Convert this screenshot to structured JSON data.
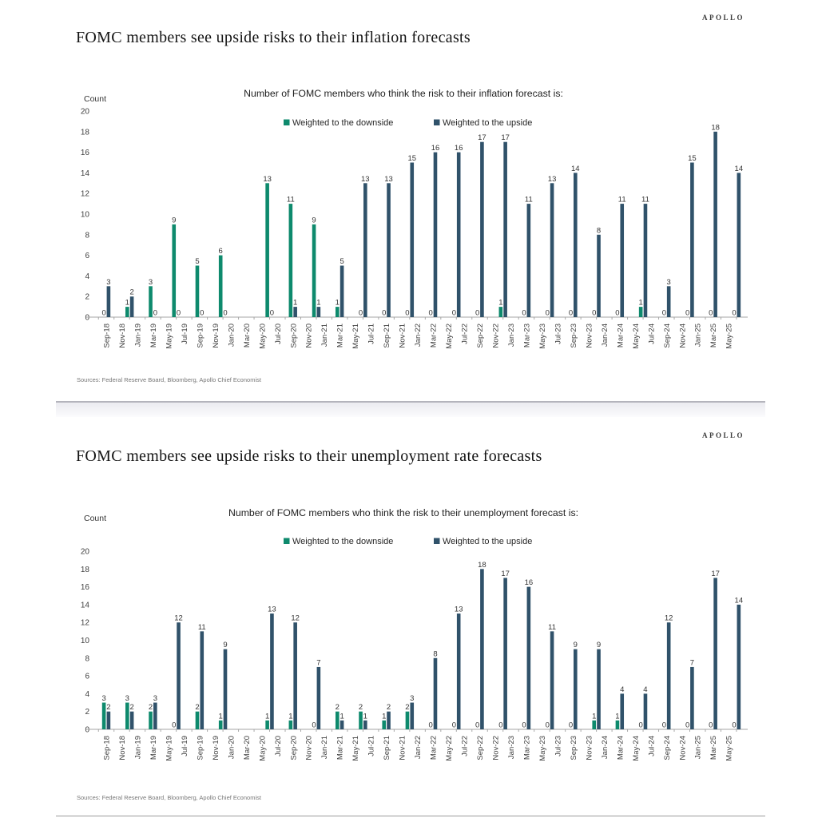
{
  "brand": "APOLLO",
  "chart_data": [
    {
      "type": "bar",
      "title": "FOMC members see upside risks to their inflation forecasts",
      "subtitle": "Number of FOMC members who think the risk to their inflation forecast is:",
      "ylabel": "Count",
      "ylim": [
        0,
        20
      ],
      "y_tick_labels": [
        "0",
        "2",
        "4",
        "6",
        "8",
        "10",
        "12",
        "14",
        "16",
        "18",
        "20"
      ],
      "grid": false,
      "legend_position": "top-center",
      "sources": "Sources: Federal Reserve Board, Bloomberg, Apollo Chief Economist",
      "x_tick_labels": [
        "Sep-18",
        "Nov-18",
        "Jan-19",
        "Mar-19",
        "May-19",
        "Jul-19",
        "Sep-19",
        "Nov-19",
        "Jan-20",
        "Mar-20",
        "May-20",
        "Jul-20",
        "Sep-20",
        "Nov-20",
        "Jan-21",
        "Mar-21",
        "May-21",
        "Jul-21",
        "Sep-21",
        "Nov-21",
        "Jan-22",
        "Mar-22",
        "May-22",
        "Jul-22",
        "Sep-22",
        "Nov-22",
        "Jan-23",
        "Mar-23",
        "May-23",
        "Jul-23",
        "Sep-23",
        "Nov-23",
        "Jan-24",
        "Mar-24",
        "May-24",
        "Jul-24",
        "Sep-24",
        "Nov-24",
        "Jan-25",
        "Mar-25",
        "May-25"
      ],
      "x_month_span": 82,
      "bar_dates": [
        "Sep-18",
        "Dec-18",
        "Mar-19",
        "Jun-19",
        "Sep-19",
        "Dec-19",
        "Jun-20",
        "Sep-20",
        "Dec-20",
        "Mar-21",
        "Jun-21",
        "Sep-21",
        "Dec-21",
        "Mar-22",
        "Jun-22",
        "Sep-22",
        "Dec-22",
        "Mar-23",
        "Jun-23",
        "Sep-23",
        "Dec-23",
        "Mar-24",
        "Jun-24",
        "Sep-24",
        "Dec-24",
        "Mar-25",
        "Jun-25"
      ],
      "bar_month_index": [
        0,
        3,
        6,
        9,
        12,
        15,
        21,
        24,
        27,
        30,
        33,
        36,
        39,
        42,
        45,
        48,
        51,
        54,
        57,
        60,
        63,
        66,
        69,
        72,
        75,
        78,
        81
      ],
      "series": [
        {
          "name": "Weighted to the downside",
          "color": "#0e8a6d",
          "values": [
            0,
            1,
            3,
            9,
            5,
            6,
            13,
            11,
            9,
            1,
            0,
            0,
            0,
            0,
            0,
            0,
            1,
            0,
            0,
            0,
            0,
            0,
            1,
            0,
            0,
            0,
            0
          ]
        },
        {
          "name": "Weighted to the upside",
          "color": "#30526a",
          "values": [
            3,
            2,
            0,
            0,
            0,
            0,
            0,
            1,
            1,
            5,
            13,
            13,
            15,
            16,
            16,
            17,
            17,
            11,
            13,
            14,
            8,
            11,
            11,
            3,
            15,
            18,
            14
          ]
        }
      ]
    },
    {
      "type": "bar",
      "title": "FOMC members see upside risks to their unemployment rate forecasts",
      "subtitle": "Number of FOMC members who think the risk to their unemployment forecast is:",
      "ylabel": "Count",
      "ylim": [
        0,
        20
      ],
      "y_tick_labels": [
        "0",
        "2",
        "4",
        "6",
        "8",
        "10",
        "12",
        "14",
        "16",
        "18",
        "20"
      ],
      "grid": false,
      "legend_position": "top-center",
      "sources": "Sources: Federal Reserve Board, Bloomberg, Apollo Chief Economist",
      "x_tick_labels": [
        "Sep-18",
        "Nov-18",
        "Jan-19",
        "Mar-19",
        "May-19",
        "Jul-19",
        "Sep-19",
        "Nov-19",
        "Jan-20",
        "Mar-20",
        "May-20",
        "Jul-20",
        "Sep-20",
        "Nov-20",
        "Jan-21",
        "Mar-21",
        "May-21",
        "Jul-21",
        "Sep-21",
        "Nov-21",
        "Jan-22",
        "Mar-22",
        "May-22",
        "Jul-22",
        "Sep-22",
        "Nov-22",
        "Jan-23",
        "Mar-23",
        "May-23",
        "Jul-23",
        "Sep-23",
        "Nov-23",
        "Jan-24",
        "Mar-24",
        "May-24",
        "Jul-24",
        "Sep-24",
        "Nov-24",
        "Jan-25",
        "Mar-25",
        "May-25"
      ],
      "x_month_span": 82,
      "bar_dates": [
        "Sep-18",
        "Dec-18",
        "Mar-19",
        "Jun-19",
        "Sep-19",
        "Dec-19",
        "Jun-20",
        "Sep-20",
        "Dec-20",
        "Mar-21",
        "Jun-21",
        "Sep-21",
        "Dec-21",
        "Mar-22",
        "Jun-22",
        "Sep-22",
        "Dec-22",
        "Mar-23",
        "Jun-23",
        "Sep-23",
        "Dec-23",
        "Mar-24",
        "Jun-24",
        "Sep-24",
        "Dec-24",
        "Mar-25",
        "Jun-25"
      ],
      "bar_month_index": [
        0,
        3,
        6,
        9,
        12,
        15,
        21,
        24,
        27,
        30,
        33,
        36,
        39,
        42,
        45,
        48,
        51,
        54,
        57,
        60,
        63,
        66,
        69,
        72,
        75,
        78,
        81
      ],
      "series": [
        {
          "name": "Weighted to the downside",
          "color": "#0e8a6d",
          "values": [
            3,
            3,
            2,
            0,
            2,
            1,
            1,
            1,
            0,
            2,
            2,
            1,
            2,
            0,
            0,
            0,
            0,
            0,
            0,
            0,
            1,
            1,
            0,
            0,
            0,
            0,
            0
          ]
        },
        {
          "name": "Weighted to the upside",
          "color": "#30526a",
          "values": [
            2,
            2,
            3,
            12,
            11,
            9,
            13,
            12,
            7,
            1,
            1,
            2,
            3,
            8,
            13,
            18,
            17,
            16,
            11,
            9,
            9,
            4,
            4,
            12,
            7,
            17,
            14
          ]
        }
      ]
    }
  ]
}
